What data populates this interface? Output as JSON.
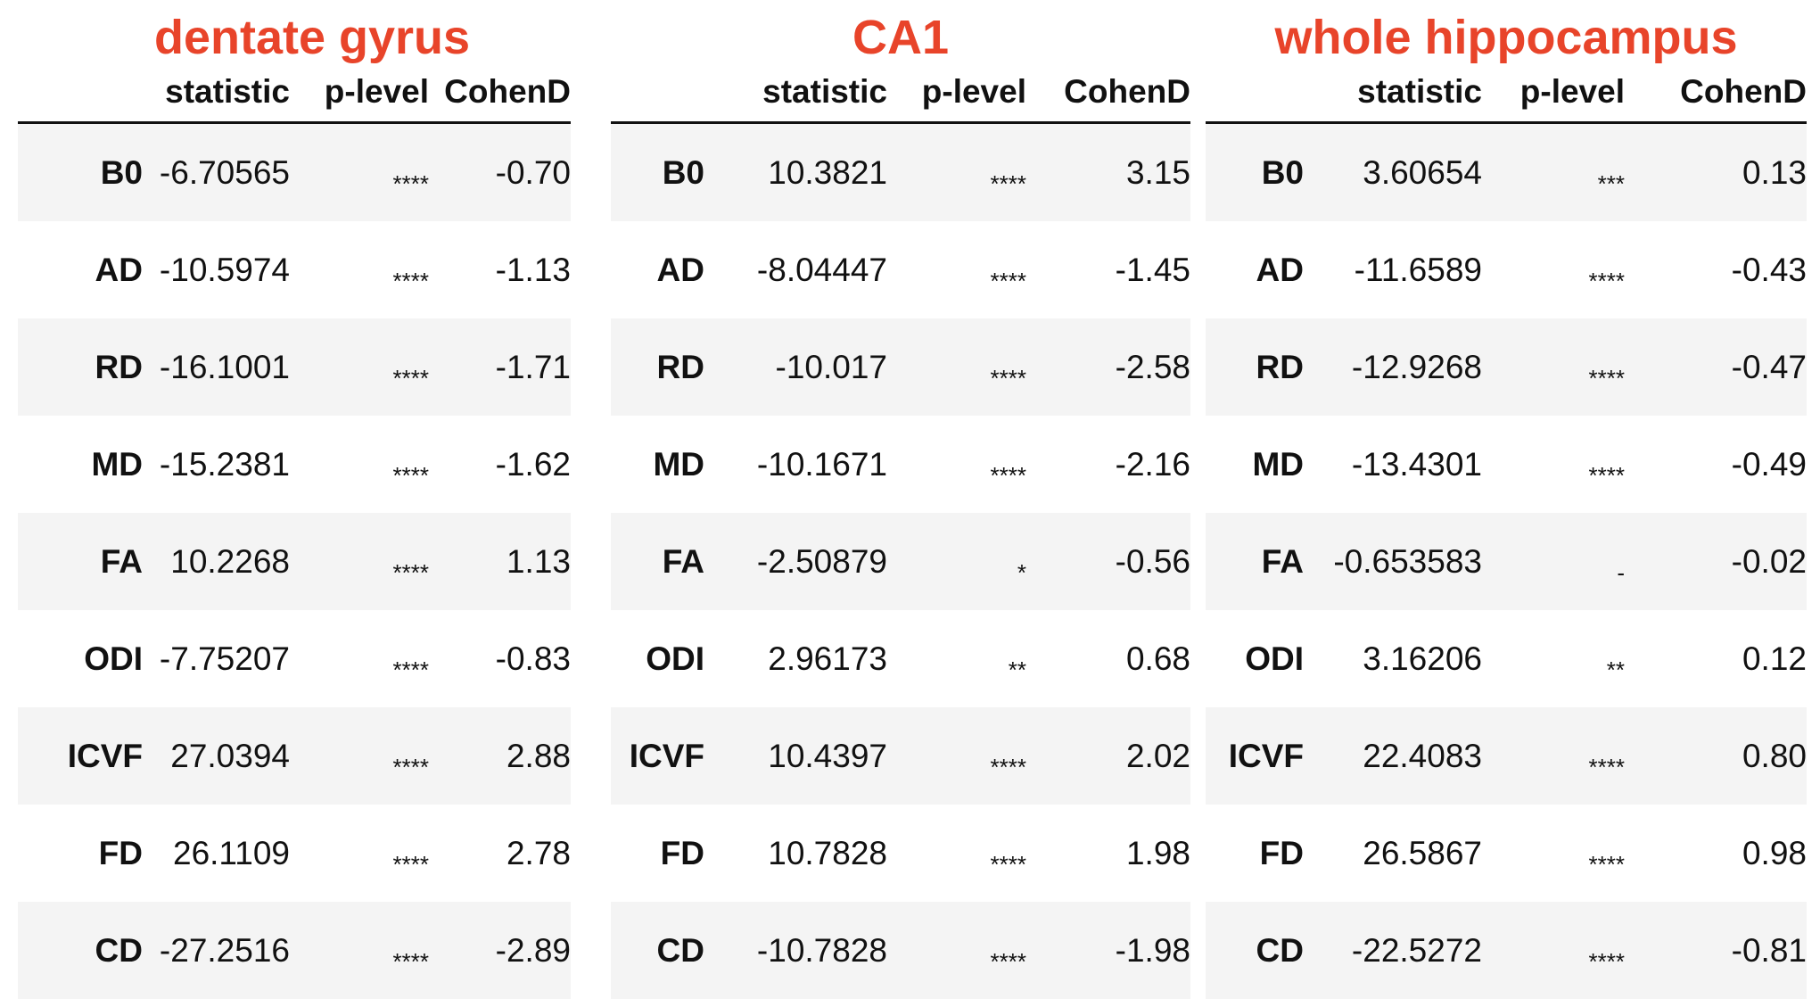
{
  "columns": [
    "statistic",
    "p-level",
    "CohenD"
  ],
  "colors": {
    "title": "#e8442a",
    "stripe": "#f4f4f4",
    "text": "#111111"
  },
  "panels": [
    {
      "title": "dentate gyrus",
      "rows": [
        {
          "label": "B0",
          "statistic": "-6.70565",
          "plevel": "****",
          "cohend": "-0.70"
        },
        {
          "label": "AD",
          "statistic": "-10.5974",
          "plevel": "****",
          "cohend": "-1.13"
        },
        {
          "label": "RD",
          "statistic": "-16.1001",
          "plevel": "****",
          "cohend": "-1.71"
        },
        {
          "label": "MD",
          "statistic": "-15.2381",
          "plevel": "****",
          "cohend": "-1.62"
        },
        {
          "label": "FA",
          "statistic": "10.2268",
          "plevel": "****",
          "cohend": "1.13"
        },
        {
          "label": "ODI",
          "statistic": "-7.75207",
          "plevel": "****",
          "cohend": "-0.83"
        },
        {
          "label": "ICVF",
          "statistic": "27.0394",
          "plevel": "****",
          "cohend": "2.88"
        },
        {
          "label": "FD",
          "statistic": "26.1109",
          "plevel": "****",
          "cohend": "2.78"
        },
        {
          "label": "CD",
          "statistic": "-27.2516",
          "plevel": "****",
          "cohend": "-2.89"
        }
      ]
    },
    {
      "title": "CA1",
      "rows": [
        {
          "label": "B0",
          "statistic": "10.3821",
          "plevel": "****",
          "cohend": "3.15"
        },
        {
          "label": "AD",
          "statistic": "-8.04447",
          "plevel": "****",
          "cohend": "-1.45"
        },
        {
          "label": "RD",
          "statistic": "-10.017",
          "plevel": "****",
          "cohend": "-2.58"
        },
        {
          "label": "MD",
          "statistic": "-10.1671",
          "plevel": "****",
          "cohend": "-2.16"
        },
        {
          "label": "FA",
          "statistic": "-2.50879",
          "plevel": "*",
          "cohend": "-0.56"
        },
        {
          "label": "ODI",
          "statistic": "2.96173",
          "plevel": "**",
          "cohend": "0.68"
        },
        {
          "label": "ICVF",
          "statistic": "10.4397",
          "plevel": "****",
          "cohend": "2.02"
        },
        {
          "label": "FD",
          "statistic": "10.7828",
          "plevel": "****",
          "cohend": "1.98"
        },
        {
          "label": "CD",
          "statistic": "-10.7828",
          "plevel": "****",
          "cohend": "-1.98"
        }
      ]
    },
    {
      "title": "whole hippocampus",
      "rows": [
        {
          "label": "B0",
          "statistic": "3.60654",
          "plevel": "***",
          "cohend": "0.13"
        },
        {
          "label": "AD",
          "statistic": "-11.6589",
          "plevel": "****",
          "cohend": "-0.43"
        },
        {
          "label": "RD",
          "statistic": "-12.9268",
          "plevel": "****",
          "cohend": "-0.47"
        },
        {
          "label": "MD",
          "statistic": "-13.4301",
          "plevel": "****",
          "cohend": "-0.49"
        },
        {
          "label": "FA",
          "statistic": "-0.653583",
          "plevel": "-",
          "cohend": "-0.02"
        },
        {
          "label": "ODI",
          "statistic": "3.16206",
          "plevel": "**",
          "cohend": "0.12"
        },
        {
          "label": "ICVF",
          "statistic": "22.4083",
          "plevel": "****",
          "cohend": "0.80"
        },
        {
          "label": "FD",
          "statistic": "26.5867",
          "plevel": "****",
          "cohend": "0.98"
        },
        {
          "label": "CD",
          "statistic": "-22.5272",
          "plevel": "****",
          "cohend": "-0.81"
        }
      ]
    }
  ]
}
